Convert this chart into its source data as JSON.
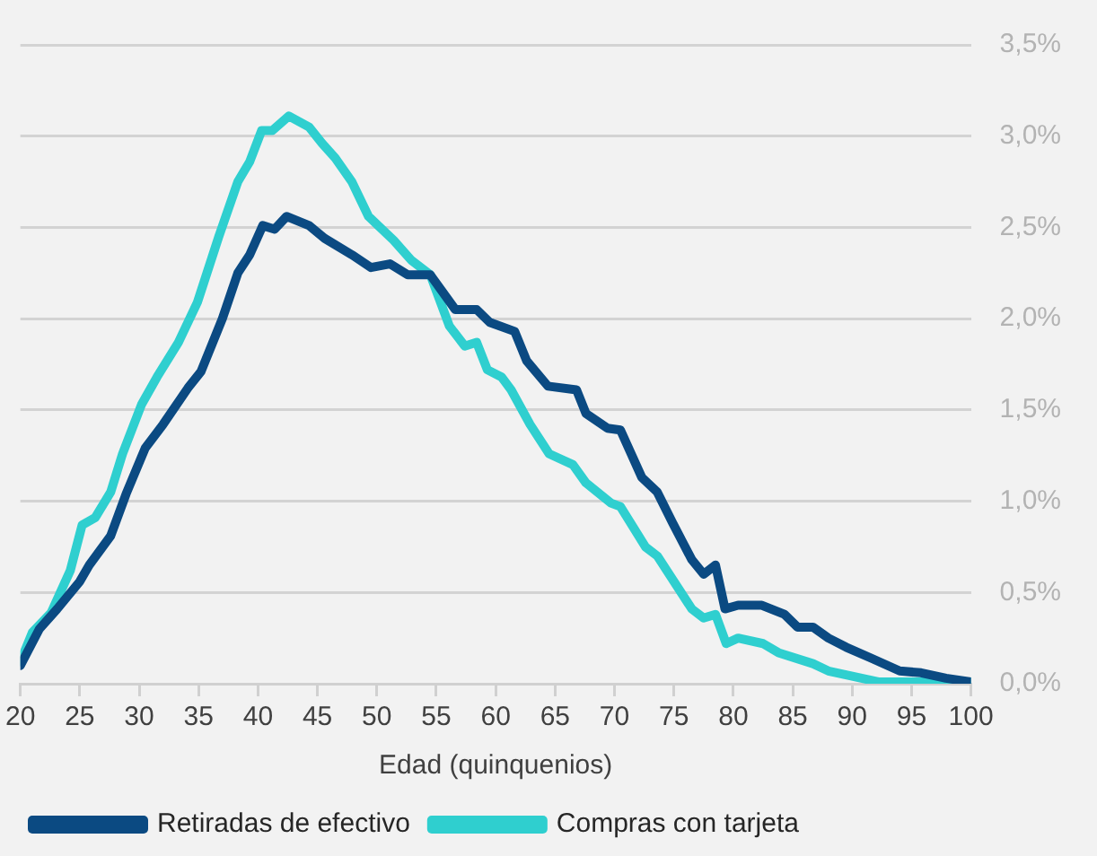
{
  "chart_data": {
    "type": "line",
    "xlabel": "Edad (quinquenios)",
    "xlim": [
      20,
      100
    ],
    "xticks": [
      20,
      25,
      30,
      35,
      40,
      45,
      50,
      55,
      60,
      65,
      70,
      75,
      80,
      85,
      90,
      95,
      100
    ],
    "ylim": [
      0,
      3.5
    ],
    "yticks": [
      {
        "value": 0,
        "label": "0,0%"
      },
      {
        "value": 0.5,
        "label": "0,5%"
      },
      {
        "value": 1,
        "label": "1,0%"
      },
      {
        "value": 1.5,
        "label": "1,5%"
      },
      {
        "value": 2,
        "label": "2,0%"
      },
      {
        "value": 2.5,
        "label": "2,5%"
      },
      {
        "value": 3,
        "label": "3,0%"
      },
      {
        "value": 3.5,
        "label": "3,5%"
      }
    ],
    "grid": "y",
    "legend": "bottom",
    "marker": "none",
    "line_style": "solid",
    "series": [
      {
        "name": "Retiradas de efectivo",
        "color": "#0b4a82",
        "x": [
          20,
          21.6,
          23.1,
          25,
          25.8,
          27.6,
          28.9,
          30.5,
          32,
          34.1,
          35.2,
          37,
          38.3,
          39.3,
          40.4,
          41.4,
          42.4,
          44.3,
          45.6,
          47.9,
          49.5,
          51.1,
          52.6,
          54.5,
          56.6,
          58.4,
          59.5,
          61.6,
          62.6,
          64.4,
          66.8,
          67.6,
          69.4,
          70.5,
          72.3,
          73.6,
          74.9,
          76.5,
          77.5,
          78.5,
          79.3,
          80.4,
          82.4,
          84.3,
          85.4,
          86.7,
          88,
          89.5,
          91.6,
          94,
          95.8,
          97.9,
          100
        ],
        "values": [
          0.1,
          0.3,
          0.41,
          0.56,
          0.65,
          0.81,
          1.04,
          1.29,
          1.42,
          1.62,
          1.71,
          2.0,
          2.25,
          2.35,
          2.51,
          2.49,
          2.56,
          2.51,
          2.44,
          2.35,
          2.28,
          2.3,
          2.24,
          2.24,
          2.05,
          2.05,
          1.98,
          1.93,
          1.77,
          1.63,
          1.61,
          1.48,
          1.4,
          1.39,
          1.13,
          1.05,
          0.88,
          0.68,
          0.6,
          0.65,
          0.41,
          0.43,
          0.43,
          0.38,
          0.31,
          0.31,
          0.25,
          0.2,
          0.14,
          0.07,
          0.06,
          0.03,
          0.01
        ]
      },
      {
        "name": "Compras con tarjeta",
        "color": "#2fcfcf",
        "x": [
          20,
          21,
          22.6,
          24.2,
          25.2,
          26.3,
          27.6,
          28.6,
          30.2,
          31.5,
          33.3,
          34.9,
          36.7,
          38.3,
          39.3,
          40.3,
          41.2,
          42.6,
          44.3,
          45.4,
          46.5,
          47.9,
          49.3,
          51.4,
          52.9,
          54.5,
          56.1,
          57.4,
          58.4,
          59.3,
          60.5,
          61.3,
          62.9,
          64.5,
          66.5,
          67.6,
          69.7,
          70.5,
          72.6,
          73.6,
          74.9,
          76.5,
          77.5,
          78.5,
          79.4,
          80.4,
          82.5,
          83.8,
          86.7,
          88,
          90.1,
          92.2,
          100
        ],
        "values": [
          0.12,
          0.28,
          0.39,
          0.62,
          0.87,
          0.91,
          1.05,
          1.26,
          1.53,
          1.68,
          1.87,
          2.09,
          2.45,
          2.75,
          2.86,
          3.03,
          3.03,
          3.11,
          3.05,
          2.96,
          2.88,
          2.75,
          2.56,
          2.43,
          2.32,
          2.24,
          1.96,
          1.85,
          1.87,
          1.72,
          1.68,
          1.61,
          1.42,
          1.26,
          1.2,
          1.1,
          0.99,
          0.97,
          0.75,
          0.7,
          0.57,
          0.41,
          0.36,
          0.38,
          0.22,
          0.25,
          0.22,
          0.17,
          0.11,
          0.07,
          0.04,
          0.01,
          0.01
        ]
      }
    ]
  }
}
